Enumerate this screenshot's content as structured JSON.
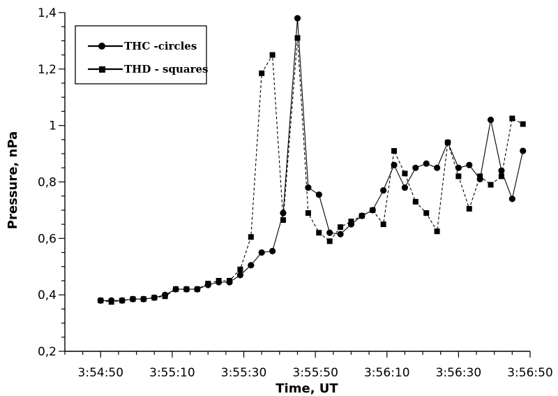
{
  "chart_data": {
    "type": "line",
    "title": "",
    "xlabel": "Time, UT",
    "ylabel": "Pressure, nPa",
    "x_unit": "time (h:mm:ss)",
    "xlim": [
      "3:54:40",
      "3:56:50"
    ],
    "ylim": [
      0.2,
      1.4
    ],
    "x_ticks": [
      "3:54:50",
      "3:55:10",
      "3:55:30",
      "3:55:50",
      "3:56:10",
      "3:56:30",
      "3:56:50"
    ],
    "y_ticks": [
      "0,2",
      "0,4",
      "0,6",
      "0,8",
      "1",
      "1,2",
      "1,4"
    ],
    "y_tick_values": [
      0.2,
      0.4,
      0.6,
      0.8,
      1.0,
      1.2,
      1.4
    ],
    "grid": false,
    "legend_position": "top-left",
    "series": [
      {
        "name": "THC -circles",
        "marker": "circle",
        "line": "solid",
        "color": "#000000",
        "points": [
          [
            "3:54:50",
            0.38
          ],
          [
            "3:54:53",
            0.38
          ],
          [
            "3:54:56",
            0.38
          ],
          [
            "3:54:59",
            0.385
          ],
          [
            "3:55:02",
            0.385
          ],
          [
            "3:55:05",
            0.39
          ],
          [
            "3:55:08",
            0.4
          ],
          [
            "3:55:11",
            0.42
          ],
          [
            "3:55:14",
            0.42
          ],
          [
            "3:55:17",
            0.42
          ],
          [
            "3:55:20",
            0.435
          ],
          [
            "3:55:23",
            0.445
          ],
          [
            "3:55:26",
            0.445
          ],
          [
            "3:55:29",
            0.47
          ],
          [
            "3:55:32",
            0.505
          ],
          [
            "3:55:35",
            0.55
          ],
          [
            "3:55:38",
            0.555
          ],
          [
            "3:55:41",
            0.69
          ],
          [
            "3:55:45",
            1.38
          ],
          [
            "3:55:48",
            0.78
          ],
          [
            "3:55:51",
            0.755
          ],
          [
            "3:55:54",
            0.62
          ],
          [
            "3:55:57",
            0.615
          ],
          [
            "3:56:00",
            0.65
          ],
          [
            "3:56:03",
            0.68
          ],
          [
            "3:56:06",
            0.7
          ],
          [
            "3:56:09",
            0.77
          ],
          [
            "3:56:12",
            0.86
          ],
          [
            "3:56:15",
            0.78
          ],
          [
            "3:56:18",
            0.85
          ],
          [
            "3:56:21",
            0.865
          ],
          [
            "3:56:24",
            0.85
          ],
          [
            "3:56:27",
            0.94
          ],
          [
            "3:56:30",
            0.85
          ],
          [
            "3:56:33",
            0.86
          ],
          [
            "3:56:36",
            0.81
          ],
          [
            "3:56:39",
            1.02
          ],
          [
            "3:56:42",
            0.84
          ],
          [
            "3:56:45",
            0.74
          ],
          [
            "3:56:48",
            0.91
          ]
        ]
      },
      {
        "name": "THD - squares",
        "marker": "square",
        "line": "dashed",
        "color": "#000000",
        "points": [
          [
            "3:54:50",
            0.38
          ],
          [
            "3:54:53",
            0.375
          ],
          [
            "3:54:56",
            0.38
          ],
          [
            "3:54:59",
            0.385
          ],
          [
            "3:55:02",
            0.385
          ],
          [
            "3:55:05",
            0.39
          ],
          [
            "3:55:08",
            0.395
          ],
          [
            "3:55:11",
            0.42
          ],
          [
            "3:55:14",
            0.42
          ],
          [
            "3:55:17",
            0.42
          ],
          [
            "3:55:20",
            0.44
          ],
          [
            "3:55:23",
            0.45
          ],
          [
            "3:55:26",
            0.45
          ],
          [
            "3:55:29",
            0.49
          ],
          [
            "3:55:32",
            0.605
          ],
          [
            "3:55:35",
            1.185
          ],
          [
            "3:55:38",
            1.25
          ],
          [
            "3:55:41",
            0.665
          ],
          [
            "3:55:45",
            1.31
          ],
          [
            "3:55:48",
            0.69
          ],
          [
            "3:55:51",
            0.62
          ],
          [
            "3:55:54",
            0.59
          ],
          [
            "3:55:57",
            0.64
          ],
          [
            "3:56:00",
            0.66
          ],
          [
            "3:56:03",
            0.68
          ],
          [
            "3:56:06",
            0.7
          ],
          [
            "3:56:09",
            0.65
          ],
          [
            "3:56:12",
            0.91
          ],
          [
            "3:56:15",
            0.83
          ],
          [
            "3:56:18",
            0.73
          ],
          [
            "3:56:21",
            0.69
          ],
          [
            "3:56:24",
            0.625
          ],
          [
            "3:56:27",
            0.94
          ],
          [
            "3:56:30",
            0.82
          ],
          [
            "3:56:33",
            0.705
          ],
          [
            "3:56:36",
            0.82
          ],
          [
            "3:56:39",
            0.79
          ],
          [
            "3:56:42",
            0.82
          ],
          [
            "3:56:45",
            1.025
          ],
          [
            "3:56:48",
            1.005
          ]
        ]
      }
    ]
  }
}
